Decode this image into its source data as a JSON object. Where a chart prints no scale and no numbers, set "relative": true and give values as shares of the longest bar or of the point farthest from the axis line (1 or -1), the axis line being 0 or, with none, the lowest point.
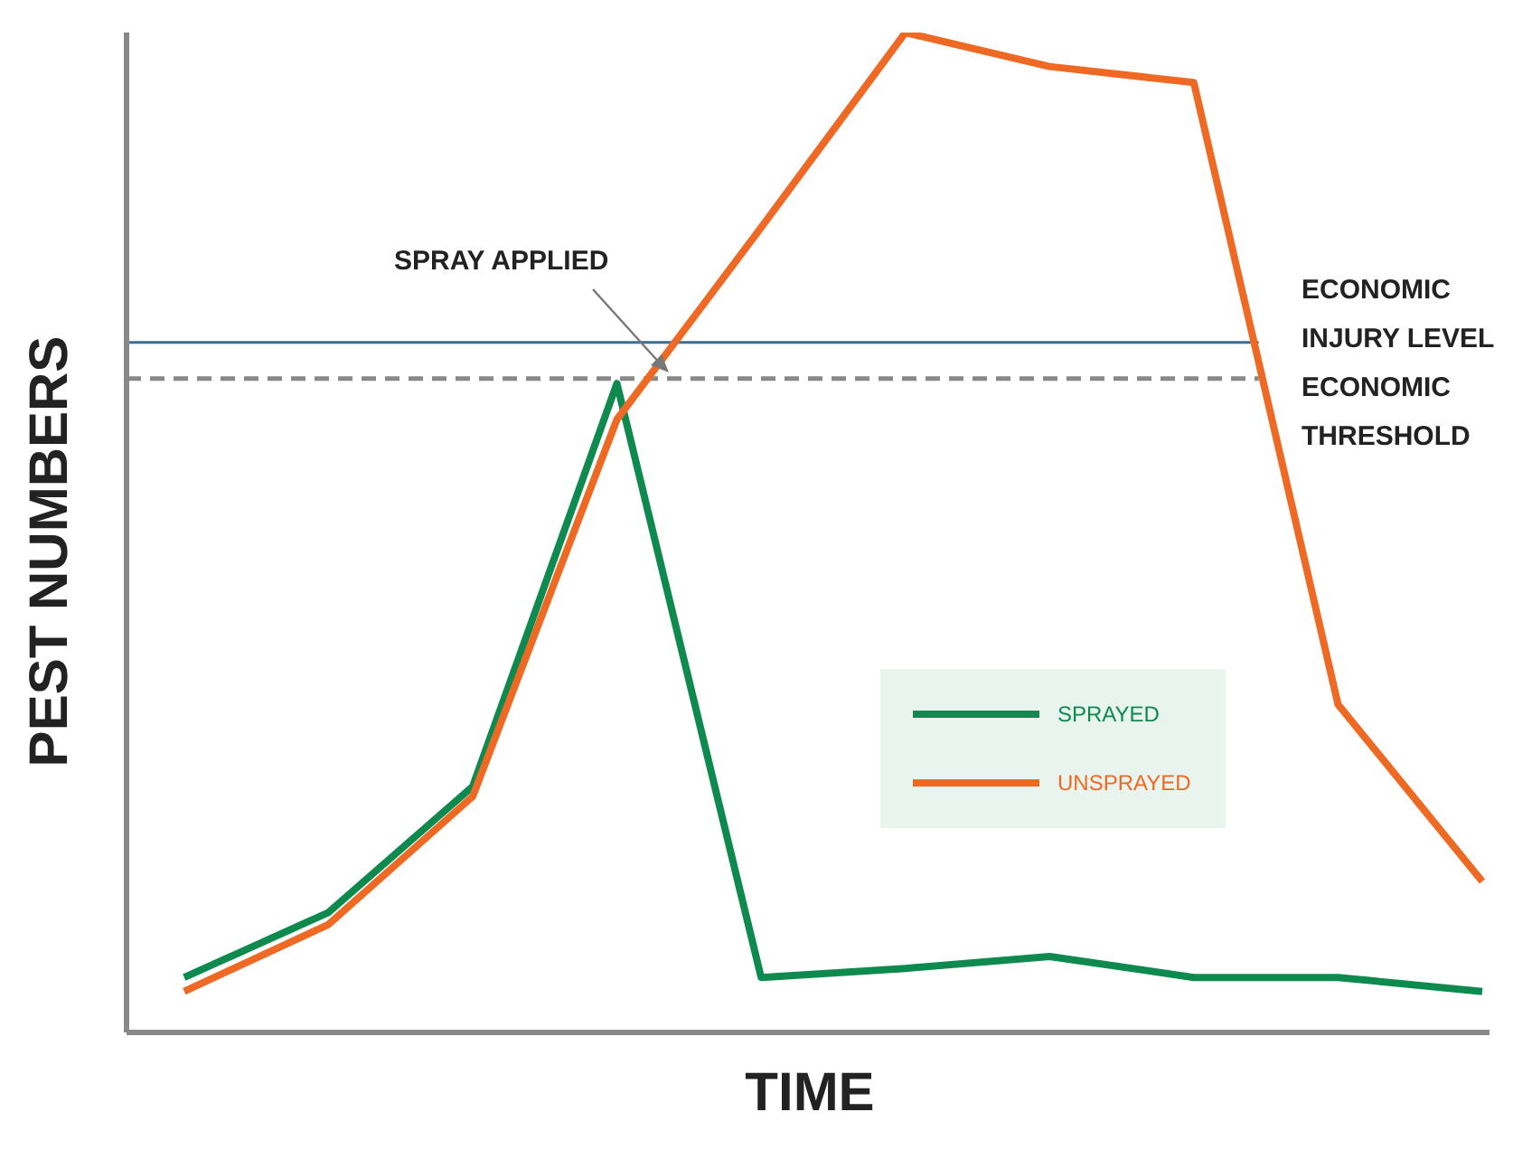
{
  "chart_data": {
    "type": "line",
    "relative": true,
    "xlabel": "TIME",
    "ylabel": "PEST NUMBERS",
    "categories": [
      null,
      null,
      null,
      null,
      null,
      null,
      null,
      null,
      null,
      null
    ],
    "series": [
      {
        "name": "SPRAYED",
        "color": "#0e8a4f",
        "values": [
          0.055,
          0.12,
          0.246,
          0.649,
          0.055,
          0.064,
          0.076,
          0.055,
          0.055,
          0.041
        ]
      },
      {
        "name": "UNSPRAYED",
        "color": "#ee6a24",
        "values": [
          0.041,
          0.108,
          0.236,
          0.613,
          0.805,
          1,
          0.966,
          0.95,
          0.328,
          0.151
        ]
      }
    ],
    "ref_lines": [
      {
        "axis": "y",
        "value": 0.69,
        "label": "ECONOMIC INJURY LEVEL",
        "color": "#3b6e8f",
        "line_style": "solid"
      },
      {
        "axis": "y",
        "value": 0.654,
        "label": "ECONOMIC THRESHOLD",
        "color": "#888888",
        "line_style": "dashed"
      }
    ],
    "annotations": [
      "SPRAY APPLIED"
    ],
    "legend": "right",
    "marker": "none",
    "grid": false,
    "line_style": "solid"
  }
}
